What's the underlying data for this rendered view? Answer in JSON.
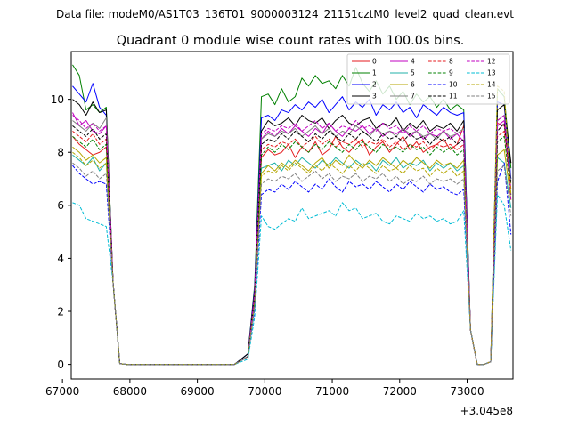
{
  "chart_data": {
    "type": "line",
    "suptitle": "Data file: modeM0/AS1T03_136T01_9000003124_21151cztM0_level2_quad_clean.evt",
    "title": "Quadrant 0 module wise count rates with 100.0s bins.",
    "xlabel": "",
    "ylabel": "",
    "x_offset_label": "+3.045e8",
    "xlim": [
      67130,
      73680
    ],
    "ylim": [
      -0.55,
      11.8
    ],
    "x_ticks": [
      67000,
      68000,
      69000,
      70000,
      71000,
      72000,
      73000
    ],
    "x_tick_labels": [
      "67000",
      "68000",
      "69000",
      "70000",
      "71000",
      "72000",
      "73000"
    ],
    "y_ticks": [
      0,
      2,
      4,
      6,
      8,
      10
    ],
    "y_tick_labels": [
      "0",
      "2",
      "4",
      "6",
      "8",
      "10"
    ],
    "legend_position": "top-right",
    "segments": [
      {
        "x_start": 67150,
        "step": 100,
        "count": 6
      },
      {
        "x_start": 67750,
        "step": 100,
        "count": 19
      },
      {
        "x_start": 69750,
        "step": 100,
        "count": 33
      },
      {
        "x_start": 73050,
        "step": 100,
        "count": 5
      }
    ],
    "low_segment": [
      3.1,
      0.03,
      0,
      0,
      0,
      0,
      0,
      0,
      0,
      0,
      0,
      0,
      0,
      0,
      0,
      0,
      0,
      0,
      0
    ],
    "shared_dips": [
      1.3,
      0,
      0,
      0.1
    ],
    "series": [
      {
        "name": "0",
        "color": "#e41a1c",
        "dash": "solid",
        "seg1": [
          8.6,
          8.3,
          8.1,
          7.9,
          8.0,
          8.2
        ],
        "seg3": [
          0.3,
          2.4,
          7.8,
          8.1,
          7.9,
          8.0,
          8.3,
          7.8,
          8.2,
          8.0,
          8.4,
          7.9,
          8.1,
          8.6,
          8.2,
          8.0,
          8.3,
          8.5,
          7.9,
          8.2,
          8.4,
          8.0,
          8.3,
          8.6,
          8.1,
          8.4,
          8.0,
          8.2,
          8.3,
          8.5,
          8.1,
          8.3,
          9.0
        ],
        "seg4": [
          9.1,
          9.0,
          7.6
        ]
      },
      {
        "name": "1",
        "color": "#008000",
        "dash": "solid",
        "seg1": [
          11.3,
          10.9,
          9.6,
          9.8,
          9.5,
          9.7
        ],
        "seg3": [
          0.4,
          3.0,
          10.1,
          10.2,
          9.8,
          10.4,
          9.9,
          10.1,
          10.8,
          10.5,
          10.9,
          10.6,
          10.7,
          10.4,
          10.9,
          10.5,
          11.2,
          10.6,
          10.3,
          10.7,
          10.2,
          10.5,
          10.0,
          10.3,
          9.8,
          10.2,
          9.9,
          10.1,
          9.7,
          10.0,
          9.6,
          9.8,
          9.6
        ],
        "seg4": [
          10.4,
          10.1,
          7.4
        ]
      },
      {
        "name": "2",
        "color": "#0000ff",
        "dash": "solid",
        "seg1": [
          10.5,
          10.2,
          9.9,
          10.6,
          9.7,
          9.4
        ],
        "seg3": [
          0.4,
          2.9,
          9.3,
          9.4,
          9.2,
          9.6,
          9.5,
          9.8,
          9.6,
          9.9,
          9.7,
          10.0,
          9.5,
          9.8,
          10.1,
          9.6,
          9.9,
          9.7,
          10.0,
          9.4,
          9.8,
          9.6,
          9.9,
          9.5,
          9.7,
          9.3,
          9.8,
          9.6,
          9.4,
          9.7,
          9.5,
          9.4,
          9.5
        ],
        "seg4": [
          9.9,
          9.8,
          7.0
        ]
      },
      {
        "name": "3",
        "color": "#000000",
        "dash": "solid",
        "seg1": [
          10.0,
          9.8,
          9.4,
          9.9,
          9.5,
          9.6
        ],
        "seg3": [
          0.4,
          2.8,
          8.8,
          9.2,
          9.0,
          9.1,
          9.3,
          9.0,
          9.4,
          9.2,
          9.1,
          9.3,
          8.9,
          9.2,
          9.4,
          9.1,
          9.0,
          9.2,
          9.3,
          8.9,
          9.1,
          9.0,
          9.3,
          8.8,
          9.1,
          8.9,
          9.2,
          8.8,
          9.0,
          8.9,
          9.1,
          8.8,
          9.2
        ],
        "seg4": [
          9.6,
          9.8,
          7.6
        ]
      },
      {
        "name": "4",
        "color": "#c000c0",
        "dash": "solid",
        "seg1": [
          9.5,
          9.0,
          9.2,
          8.8,
          8.7,
          9.0
        ],
        "seg3": [
          0.3,
          2.6,
          8.5,
          8.8,
          8.6,
          8.9,
          8.7,
          9.0,
          8.8,
          8.6,
          8.9,
          8.7,
          9.1,
          8.8,
          8.6,
          8.9,
          8.8,
          9.0,
          8.7,
          8.9,
          8.6,
          8.8,
          8.7,
          8.9,
          8.6,
          8.8,
          8.5,
          8.7,
          8.6,
          8.8,
          8.5,
          8.7,
          8.4
        ],
        "seg4": [
          9.0,
          9.2,
          6.6
        ]
      },
      {
        "name": "5",
        "color": "#20b2aa",
        "dash": "solid",
        "seg1": [
          7.9,
          7.7,
          7.5,
          7.8,
          7.3,
          7.6
        ],
        "seg3": [
          0.3,
          2.3,
          7.4,
          7.5,
          7.6,
          7.3,
          7.7,
          7.5,
          7.8,
          7.6,
          7.4,
          7.7,
          7.5,
          7.8,
          7.6,
          7.4,
          7.7,
          7.5,
          7.6,
          7.3,
          7.7,
          7.5,
          7.8,
          7.4,
          7.6,
          7.5,
          7.7,
          7.3,
          7.6,
          7.4,
          7.6,
          7.3,
          7.5
        ],
        "seg4": [
          7.8,
          7.6,
          5.9
        ]
      },
      {
        "name": "6",
        "color": "#b5a600",
        "dash": "solid",
        "seg1": [
          8.2,
          8.0,
          7.7,
          7.9,
          7.6,
          7.8
        ],
        "seg3": [
          0.3,
          2.4,
          7.2,
          7.5,
          7.3,
          7.6,
          7.4,
          7.7,
          7.5,
          7.3,
          7.6,
          7.8,
          7.4,
          7.7,
          7.5,
          7.9,
          7.6,
          7.4,
          7.7,
          7.5,
          7.8,
          7.6,
          7.4,
          7.7,
          7.5,
          7.8,
          7.6,
          7.4,
          7.7,
          7.5,
          7.6,
          7.4,
          7.7
        ],
        "seg4": [
          7.9,
          8.1,
          6.2
        ]
      },
      {
        "name": "7",
        "color": "#808080",
        "dash": "solid",
        "seg1": [
          9.2,
          9.0,
          8.8,
          9.1,
          8.9,
          9.3
        ],
        "seg3": [
          0.3,
          2.6,
          8.5,
          8.7,
          8.6,
          8.8,
          8.7,
          8.9,
          8.6,
          8.8,
          9.0,
          8.7,
          8.9,
          8.6,
          8.8,
          8.7,
          9.0,
          8.8,
          8.6,
          8.9,
          8.7,
          8.8,
          8.6,
          8.9,
          8.7,
          8.8,
          8.6,
          8.7,
          8.5,
          8.8,
          8.6,
          8.7,
          8.9
        ],
        "seg4": [
          9.2,
          9.4,
          6.9
        ]
      },
      {
        "name": "8",
        "color": "#e41a1c",
        "dash": "dashed",
        "seg1": [
          8.8,
          8.6,
          8.4,
          8.7,
          8.3,
          8.5
        ],
        "seg3": [
          0.3,
          2.5,
          8.1,
          8.3,
          8.2,
          8.4,
          8.3,
          8.5,
          8.2,
          8.4,
          8.6,
          8.3,
          8.5,
          8.2,
          8.4,
          8.3,
          8.5,
          8.2,
          8.4,
          8.3,
          8.5,
          8.2,
          8.4,
          8.1,
          8.3,
          8.2,
          8.4,
          8.1,
          8.3,
          8.2,
          8.3,
          8.1,
          8.3
        ],
        "seg4": [
          8.6,
          8.8,
          6.6
        ]
      },
      {
        "name": "9",
        "color": "#008000",
        "dash": "dashed",
        "seg1": [
          8.6,
          8.4,
          8.2,
          8.5,
          8.1,
          8.3
        ],
        "seg3": [
          0.3,
          2.5,
          7.9,
          8.2,
          8.0,
          8.3,
          8.1,
          8.4,
          8.2,
          8.0,
          8.3,
          8.1,
          8.4,
          8.2,
          8.0,
          8.3,
          8.1,
          8.4,
          8.2,
          8.0,
          8.3,
          8.1,
          8.2,
          8.0,
          8.3,
          8.1,
          8.2,
          7.9,
          8.2,
          8.0,
          8.2,
          7.9,
          8.1
        ],
        "seg4": [
          8.4,
          8.6,
          6.4
        ]
      },
      {
        "name": "10",
        "color": "#0000ff",
        "dash": "dashed",
        "seg1": [
          7.5,
          7.2,
          7.0,
          6.8,
          6.9,
          6.8
        ],
        "seg3": [
          0.3,
          2.1,
          6.4,
          6.6,
          6.5,
          6.8,
          6.6,
          6.9,
          6.7,
          6.5,
          6.8,
          6.6,
          7.0,
          6.7,
          6.5,
          6.9,
          6.7,
          6.8,
          6.6,
          6.9,
          6.7,
          6.5,
          6.8,
          6.6,
          6.9,
          6.7,
          6.5,
          6.8,
          6.6,
          6.7,
          6.5,
          6.4,
          6.6
        ],
        "seg4": [
          6.9,
          7.6,
          4.9
        ]
      },
      {
        "name": "11",
        "color": "#000000",
        "dash": "dashed",
        "seg1": [
          9.0,
          8.8,
          8.6,
          8.9,
          8.5,
          8.7
        ],
        "seg3": [
          0.3,
          2.6,
          8.3,
          8.5,
          8.4,
          8.7,
          8.5,
          8.8,
          8.6,
          8.4,
          8.7,
          8.5,
          8.8,
          8.6,
          8.4,
          8.7,
          8.5,
          8.8,
          8.6,
          8.4,
          8.7,
          8.5,
          8.6,
          8.4,
          8.7,
          8.5,
          8.6,
          8.3,
          8.6,
          8.4,
          8.6,
          8.3,
          8.5
        ],
        "seg4": [
          8.8,
          9.1,
          6.8
        ]
      },
      {
        "name": "12",
        "color": "#c000c0",
        "dash": "dashed",
        "seg1": [
          9.4,
          9.2,
          8.9,
          9.1,
          8.8,
          9.0
        ],
        "seg3": [
          0.3,
          2.7,
          8.7,
          8.9,
          8.8,
          9.0,
          8.9,
          9.1,
          8.8,
          9.0,
          9.2,
          8.9,
          9.1,
          8.8,
          9.0,
          8.9,
          9.2,
          8.9,
          9.0,
          8.8,
          9.1,
          8.9,
          9.0,
          8.7,
          9.0,
          8.8,
          9.0,
          8.7,
          8.9,
          8.8,
          8.9,
          8.7,
          8.8
        ],
        "seg4": [
          9.2,
          9.4,
          6.2
        ]
      },
      {
        "name": "13",
        "color": "#00bcd4",
        "dash": "dashed",
        "seg1": [
          6.1,
          6.0,
          5.5,
          5.4,
          5.3,
          5.2
        ],
        "seg3": [
          0.2,
          1.8,
          5.6,
          5.2,
          5.1,
          5.3,
          5.5,
          5.4,
          5.9,
          5.5,
          5.6,
          5.7,
          5.8,
          5.6,
          6.1,
          5.8,
          5.9,
          5.5,
          5.6,
          5.7,
          5.4,
          5.3,
          5.6,
          5.5,
          5.4,
          5.7,
          5.5,
          5.6,
          5.4,
          5.5,
          5.3,
          5.4,
          5.8
        ],
        "seg4": [
          6.4,
          6.0,
          4.3
        ]
      },
      {
        "name": "14",
        "color": "#b5a600",
        "dash": "dashed",
        "seg1": [
          8.0,
          7.8,
          7.5,
          7.7,
          7.4,
          7.6
        ],
        "seg3": [
          0.3,
          2.3,
          7.1,
          7.3,
          7.2,
          7.5,
          7.3,
          7.6,
          7.4,
          7.2,
          7.5,
          7.3,
          7.6,
          7.4,
          7.2,
          7.5,
          7.3,
          7.6,
          7.4,
          7.2,
          7.5,
          7.3,
          7.4,
          7.2,
          7.5,
          7.3,
          7.4,
          7.1,
          7.4,
          7.2,
          7.4,
          7.1,
          7.3
        ],
        "seg4": [
          10.5,
          10.3,
          6.4
        ]
      },
      {
        "name": "15",
        "color": "#808080",
        "dash": "dashed",
        "seg1": [
          7.6,
          7.4,
          7.1,
          7.3,
          7.0,
          7.2
        ],
        "seg3": [
          0.3,
          2.2,
          6.8,
          7.0,
          6.9,
          7.1,
          7.0,
          7.2,
          6.9,
          7.1,
          7.3,
          7.0,
          7.2,
          6.9,
          7.1,
          7.0,
          7.2,
          6.9,
          7.1,
          7.0,
          7.2,
          6.9,
          7.1,
          6.8,
          7.0,
          6.9,
          7.1,
          6.8,
          7.0,
          6.9,
          7.0,
          6.8,
          7.0
        ],
        "seg4": [
          7.3,
          7.5,
          5.6
        ]
      }
    ]
  }
}
